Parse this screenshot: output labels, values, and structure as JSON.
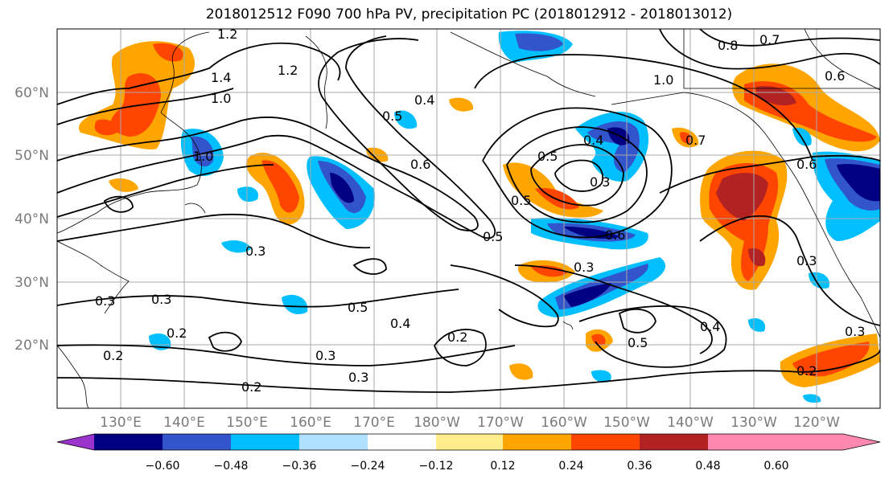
{
  "title": "2018012512 F090 700 hPa PV, precipitation PC (2018012912 - 2018013012)",
  "map": {
    "lat_ticks": [
      "60°N",
      "50°N",
      "40°N",
      "30°N",
      "20°N"
    ],
    "lon_ticks": [
      "130°E",
      "140°E",
      "150°E",
      "160°E",
      "170°E",
      "180°W",
      "170°W",
      "160°W",
      "150°W",
      "140°W",
      "130°W",
      "120°W"
    ],
    "lat_values": [
      60,
      50,
      40,
      30,
      20
    ],
    "lon_values": [
      130,
      140,
      150,
      160,
      170,
      180,
      190,
      200,
      210,
      220,
      230,
      240
    ],
    "lat_range": [
      10,
      70
    ],
    "lon_range": [
      120,
      250
    ]
  },
  "contour_labels": [
    "1.2",
    "1.4",
    "1.2",
    "1.0",
    "0.8",
    "0.7",
    "0.6",
    "1.0",
    "0.5",
    "0.4",
    "0.6",
    "0.5",
    "0.4",
    "0.3",
    "0.7",
    "0.6",
    "1.0",
    "0.6",
    "0.3",
    "0.3",
    "0.5",
    "0.4",
    "0.3",
    "0.2",
    "0.3",
    "0.2",
    "0.3",
    "0.2",
    "0.2",
    "0.3",
    "0.3",
    "0.5",
    "0.5",
    "0.4",
    "0.2",
    "0.3",
    "0.5"
  ],
  "colorbar": {
    "ticks": [
      "−0.60",
      "−0.48",
      "−0.36",
      "−0.24",
      "−0.12",
      "0.12",
      "0.24",
      "0.36",
      "0.48",
      "0.60"
    ],
    "colors": [
      "#9933cc",
      "#000080",
      "#3355cc",
      "#00bfff",
      "#b0e0ff",
      "#ffffff",
      "#ffec8b",
      "#ffa500",
      "#ff4500",
      "#b22222",
      "#ff88b0"
    ]
  },
  "colors": {
    "neg_strong": "#000080",
    "neg_mid": "#3355cc",
    "neg_light": "#00bfff",
    "neg_pale": "#b0e0ff",
    "pos_pale": "#ffec8b",
    "pos_light": "#ffa500",
    "pos_mid": "#ff4500",
    "pos_strong": "#b22222"
  }
}
